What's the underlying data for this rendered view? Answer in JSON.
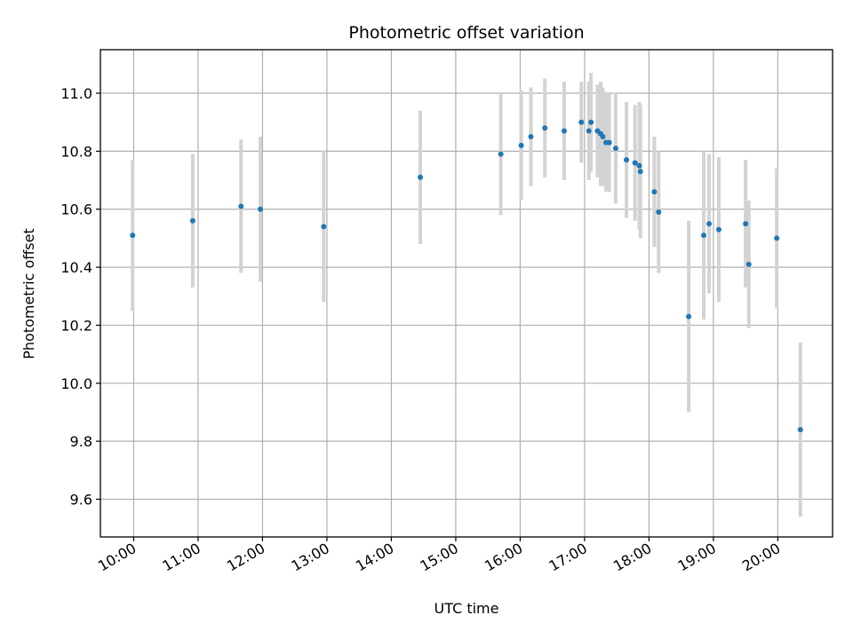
{
  "chart_data": {
    "type": "scatter",
    "title": "Photometric offset variation",
    "xlabel": "UTC time",
    "ylabel": "Photometric offset",
    "x_ticks": [
      "10:00",
      "11:00",
      "12:00",
      "13:00",
      "14:00",
      "15:00",
      "16:00",
      "17:00",
      "18:00",
      "19:00",
      "20:00"
    ],
    "y_ticks": [
      "9.6",
      "9.8",
      "10.0",
      "10.2",
      "10.4",
      "10.6",
      "10.8",
      "11.0"
    ],
    "xlim": [
      "09:29",
      "20:51"
    ],
    "ylim": [
      9.47,
      11.15
    ],
    "grid": true,
    "colors": {
      "point": "#1f77b4",
      "errorbar": "#d3d3d3",
      "grid": "#b0b0b0"
    },
    "points": [
      {
        "x": "09:59",
        "y": 10.51,
        "yerr": 0.26
      },
      {
        "x": "10:55",
        "y": 10.56,
        "yerr": 0.23
      },
      {
        "x": "11:40",
        "y": 10.61,
        "yerr": 0.23
      },
      {
        "x": "11:58",
        "y": 10.6,
        "yerr": 0.25
      },
      {
        "x": "12:57",
        "y": 10.54,
        "yerr": 0.26
      },
      {
        "x": "14:27",
        "y": 10.71,
        "yerr": 0.23
      },
      {
        "x": "15:42",
        "y": 10.79,
        "yerr": 0.21
      },
      {
        "x": "16:01",
        "y": 10.82,
        "yerr": 0.19
      },
      {
        "x": "16:10",
        "y": 10.85,
        "yerr": 0.17
      },
      {
        "x": "16:23",
        "y": 10.88,
        "yerr": 0.17
      },
      {
        "x": "16:41",
        "y": 10.87,
        "yerr": 0.17
      },
      {
        "x": "16:57",
        "y": 10.9,
        "yerr": 0.14
      },
      {
        "x": "17:04",
        "y": 10.87,
        "yerr": 0.17
      },
      {
        "x": "17:06",
        "y": 10.9,
        "yerr": 0.17
      },
      {
        "x": "17:12",
        "y": 10.87,
        "yerr": 0.16
      },
      {
        "x": "17:15",
        "y": 10.86,
        "yerr": 0.18
      },
      {
        "x": "17:17",
        "y": 10.85,
        "yerr": 0.17
      },
      {
        "x": "17:20",
        "y": 10.83,
        "yerr": 0.17
      },
      {
        "x": "17:23",
        "y": 10.83,
        "yerr": 0.17
      },
      {
        "x": "17:29",
        "y": 10.81,
        "yerr": 0.19
      },
      {
        "x": "17:39",
        "y": 10.77,
        "yerr": 0.2
      },
      {
        "x": "17:47",
        "y": 10.76,
        "yerr": 0.2
      },
      {
        "x": "17:51",
        "y": 10.75,
        "yerr": 0.22
      },
      {
        "x": "17:52",
        "y": 10.73,
        "yerr": 0.23
      },
      {
        "x": "18:05",
        "y": 10.66,
        "yerr": 0.19
      },
      {
        "x": "18:09",
        "y": 10.59,
        "yerr": 0.21
      },
      {
        "x": "18:37",
        "y": 10.23,
        "yerr": 0.33
      },
      {
        "x": "18:51",
        "y": 10.51,
        "yerr": 0.29
      },
      {
        "x": "18:56",
        "y": 10.55,
        "yerr": 0.24
      },
      {
        "x": "19:05",
        "y": 10.53,
        "yerr": 0.25
      },
      {
        "x": "19:30",
        "y": 10.55,
        "yerr": 0.22
      },
      {
        "x": "19:33",
        "y": 10.41,
        "yerr": 0.22
      },
      {
        "x": "19:59",
        "y": 10.5,
        "yerr": 0.24
      },
      {
        "x": "20:21",
        "y": 9.84,
        "yerr": 0.3
      }
    ]
  }
}
